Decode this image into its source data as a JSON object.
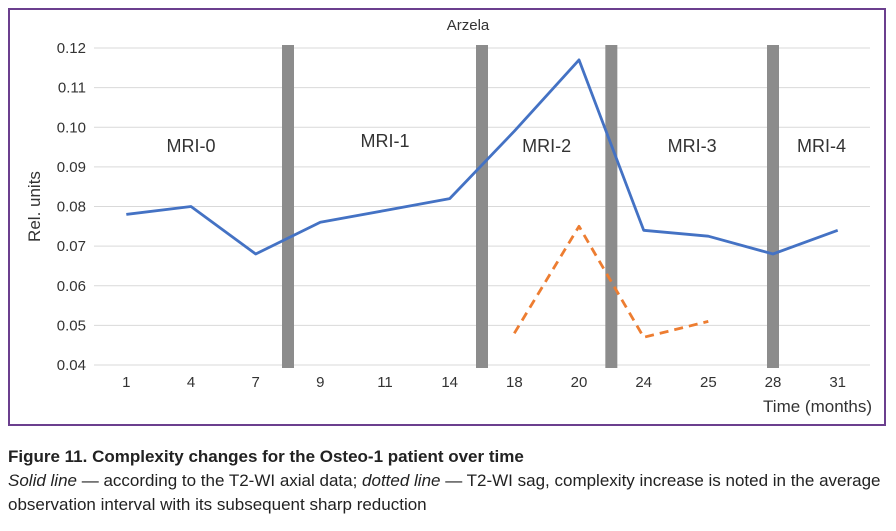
{
  "chart_data": {
    "type": "line",
    "title": "Arzela",
    "xlabel": "Time (months)",
    "ylabel": "Rel. units",
    "categories": [
      "1",
      "4",
      "7",
      "9",
      "11",
      "14",
      "18",
      "20",
      "24",
      "25",
      "28",
      "31"
    ],
    "ylim": [
      0.04,
      0.12
    ],
    "yticks": [
      "0.04",
      "0.05",
      "0.06",
      "0.07",
      "0.08",
      "0.09",
      "0.10",
      "0.11",
      "0.12"
    ],
    "grid": true,
    "series": [
      {
        "style": "solid",
        "color": "#4472c4",
        "values": [
          0.078,
          0.08,
          0.068,
          0.076,
          0.079,
          0.082,
          0.099,
          0.117,
          0.074,
          0.0725,
          0.068,
          0.074
        ]
      },
      {
        "style": "dashed",
        "color": "#ed7d31",
        "values": [
          null,
          null,
          null,
          null,
          null,
          null,
          0.048,
          0.075,
          0.047,
          0.051,
          null,
          null
        ]
      }
    ],
    "separators": [
      {
        "after_category": "7"
      },
      {
        "after_category": "14"
      },
      {
        "after_category": "20"
      },
      {
        "after_category": "28",
        "offset": -0.5
      }
    ],
    "separator_color": "#8c8c8c",
    "regions": [
      "MRI-0",
      "MRI-1",
      "MRI-2",
      "MRI-3",
      "MRI-4"
    ]
  },
  "caption": {
    "title": "Figure 11. Complexity changes for the Osteo-1 patient over time",
    "solid_label": "Solid line",
    "solid_text": " — according to the T2-WI axial data; ",
    "dotted_label": "dotted line",
    "dotted_text": " — T2-WI sag, complexity increase is noted in the average observation interval with its subsequent sharp reduction"
  }
}
